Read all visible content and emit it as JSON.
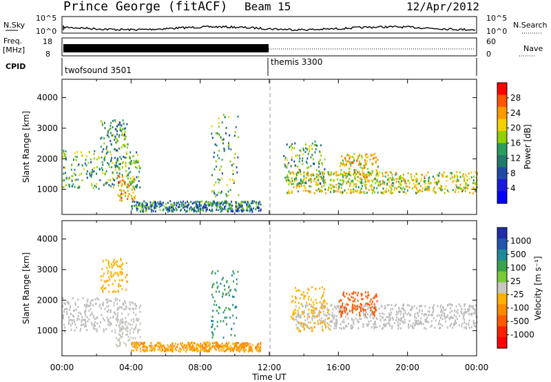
{
  "header": {
    "station": "Prince George (fitACF)",
    "beam": "Beam 15",
    "date": "12/Apr/2012"
  },
  "summary_panels": {
    "nsky_label": "N.Sky",
    "nsky_ticks": [
      "10^5",
      "10^0"
    ],
    "nsearch_label": "N.Search",
    "freq_label_top": "Freq.",
    "freq_label_unit": "[MHz]",
    "freq_ticks": [
      "18",
      "8"
    ],
    "nave_ticks": [
      "60",
      "0"
    ],
    "nave_label": "Nave",
    "cpid_label": "CPID",
    "cpid_segments": [
      {
        "name": "twofsound 3501",
        "start_hour": 0,
        "end_hour": 12
      },
      {
        "name": "themis 3300",
        "start_hour": 12,
        "end_hour": 24
      }
    ]
  },
  "chart_data": [
    {
      "type": "heatmap",
      "title": "",
      "xlabel": "",
      "ylabel": "Slant Range [km]",
      "xlim": [
        0,
        24
      ],
      "ylim": [
        180,
        4600
      ],
      "y_ticks": [
        "1000",
        "2000",
        "3000",
        "4000"
      ],
      "colorbar": {
        "label": "Power [dB]",
        "ticks": [
          "28",
          "24",
          "20",
          "16",
          "12",
          "8",
          "4"
        ],
        "colors": [
          "#ff0000",
          "#ff5500",
          "#ff9900",
          "#f5d000",
          "#8fd000",
          "#2a9d5c",
          "#227a6a",
          "#1f4aa8",
          "#1a1adf",
          "#0000ff"
        ]
      },
      "regions": [
        {
          "t0": 0.0,
          "t1": 4.5,
          "r0": 1050,
          "r1": 2300,
          "value": 14
        },
        {
          "t0": 2.2,
          "t1": 3.8,
          "r0": 2300,
          "r1": 3300,
          "value": 12
        },
        {
          "t0": 3.2,
          "t1": 4.2,
          "r0": 650,
          "r1": 1500,
          "value": 22
        },
        {
          "t0": 4.0,
          "t1": 11.5,
          "r0": 300,
          "r1": 650,
          "value": 10
        },
        {
          "t0": 8.6,
          "t1": 10.2,
          "r0": 800,
          "r1": 3500,
          "value": 13
        },
        {
          "t0": 12.8,
          "t1": 15.2,
          "r0": 1200,
          "r1": 2600,
          "value": 14
        },
        {
          "t0": 13.0,
          "t1": 24.0,
          "r0": 900,
          "r1": 1600,
          "value": 18
        },
        {
          "t0": 16.0,
          "t1": 18.3,
          "r0": 1400,
          "r1": 2200,
          "value": 20
        }
      ]
    },
    {
      "type": "heatmap",
      "title": "",
      "xlabel": "Time UT",
      "ylabel": "Slant Range [km]",
      "xlim": [
        0,
        24
      ],
      "ylim": [
        180,
        4600
      ],
      "x_ticks": [
        "00:00",
        "04:00",
        "08:00",
        "12:00",
        "16:00",
        "20:00",
        "00:00"
      ],
      "y_ticks": [
        "1000",
        "2000",
        "3000",
        "4000"
      ],
      "colorbar": {
        "label": "Velocity [m s⁻¹]",
        "ticks": [
          "1000",
          "500",
          "100",
          "25",
          "-25",
          "-100",
          "-500",
          "-1000"
        ],
        "colors": [
          "#1f2fa8",
          "#2255b0",
          "#1f8a9a",
          "#3aa24a",
          "#7acb3a",
          "#c8c8c0",
          "#ffb000",
          "#ff8a00",
          "#ff5a00",
          "#ff2000",
          "#ff0000"
        ]
      },
      "ground_scatter_color": "#bdbdbd",
      "regions": [
        {
          "t0": 0.0,
          "t1": 4.5,
          "r0": 1000,
          "r1": 2100,
          "value": 0,
          "kind": "ground_scatter"
        },
        {
          "t0": 2.2,
          "t1": 3.8,
          "r0": 2300,
          "r1": 3400,
          "value": -150
        },
        {
          "t0": 3.0,
          "t1": 4.5,
          "r0": 500,
          "r1": 1400,
          "value": 80
        },
        {
          "t0": 4.0,
          "t1": 11.5,
          "r0": 350,
          "r1": 650,
          "value": -300
        },
        {
          "t0": 8.6,
          "t1": 10.2,
          "r0": 800,
          "r1": 3000,
          "value": 500
        },
        {
          "t0": 13.5,
          "t1": 24.0,
          "r0": 1100,
          "r1": 1900,
          "value": 0,
          "kind": "ground_scatter"
        },
        {
          "t0": 13.2,
          "t1": 15.5,
          "r0": 1000,
          "r1": 2500,
          "value": -250
        },
        {
          "t0": 16.0,
          "t1": 18.2,
          "r0": 1500,
          "r1": 2300,
          "value": -600
        }
      ]
    }
  ]
}
